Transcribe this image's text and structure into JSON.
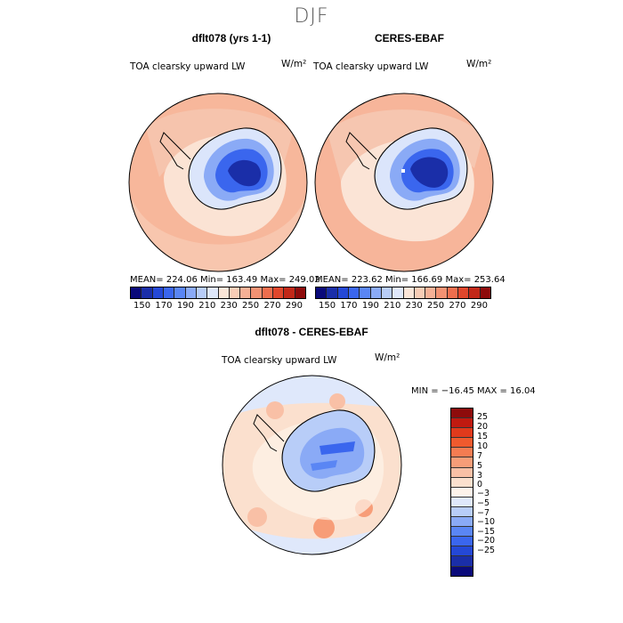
{
  "season_title": "DJF",
  "panels": [
    {
      "title": "dflt078 (yrs 1-1)",
      "variable": "TOA clearsky upward LW",
      "units": "W/m²",
      "stats": "MEAN= 224.06   Min= 163.49   Max= 249.02"
    },
    {
      "title": "CERES-EBAF",
      "variable": "TOA clearsky upward LW",
      "units": "W/m²",
      "stats": "MEAN= 223.62   Min= 166.69   Max= 253.64"
    }
  ],
  "diff_panel": {
    "title": "dflt078 - CERES-EBAF",
    "variable": "TOA clearsky upward LW",
    "units": "W/m²",
    "stats": "MIN = −16.45  MAX =  16.04"
  },
  "colorbar_top": {
    "ticks": [
      "150",
      "170",
      "190",
      "210",
      "230",
      "250",
      "270",
      "290"
    ],
    "colors": [
      "#0a0a7a",
      "#1a2ea8",
      "#2448d6",
      "#3a66ee",
      "#5a86f4",
      "#8aaaf6",
      "#b8cdf8",
      "#dfe8fb",
      "#fbe6d8",
      "#f8cdb6",
      "#f6b196",
      "#f39273",
      "#ee6e4e",
      "#e0472c",
      "#c22818",
      "#8e0b0b"
    ]
  },
  "colorbar_diff": {
    "labels": [
      "25",
      "20",
      "15",
      "10",
      "7",
      "5",
      "3",
      "0",
      "−3",
      "−5",
      "−7",
      "−10",
      "−15",
      "−20",
      "−25"
    ],
    "colors": [
      "#8e0b0b",
      "#c01a10",
      "#e03a1c",
      "#ef5a2e",
      "#f47c52",
      "#f79d78",
      "#f9c0a6",
      "#fbe0ce",
      "#fdf3ea",
      "#dfe8fb",
      "#b8cdf8",
      "#8aaaf6",
      "#5a86f4",
      "#3a66ee",
      "#2448d6",
      "#1a2ea8",
      "#0a0a7a"
    ]
  }
}
